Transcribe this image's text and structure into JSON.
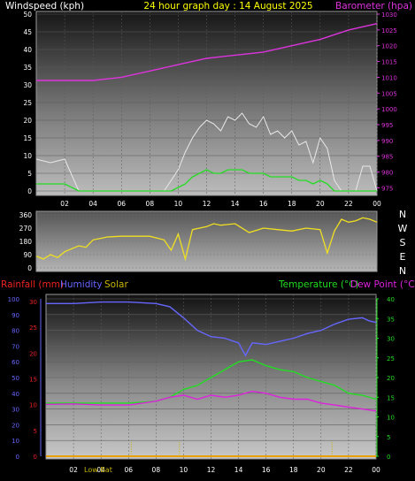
{
  "header": {
    "left": "Windspeed (kph)",
    "center": "24 hour graph day : 14 August 2025",
    "right": "Barometer (hpa)"
  },
  "dir_labels": [
    "N",
    "W",
    "S",
    "E",
    "N"
  ],
  "bottom_header": {
    "rainfall": "Rainfall (mm)",
    "humidity": "Humidity",
    "solar": "Solar",
    "temperature": "Temperature (°C)",
    "dewpoint": "Dew Point (°C)"
  },
  "lowbat_label": "Low Bat",
  "colors": {
    "wind": "#ffffff",
    "gust": "#e8e8e8",
    "avgwind": "#22dd22",
    "barometer": "#dd33dd",
    "direction": "#f0e020",
    "rainfall": "#ee2222",
    "humidity": "#6666ff",
    "solar": "#c8b400",
    "temperature": "#22dd22",
    "dewpoint": "#dd22dd",
    "title": "#ffff00",
    "text": "#ffffff"
  },
  "chart_data": [
    {
      "type": "line",
      "title": "24 hour graph day : 14 August 2025",
      "ylabel": "Windspeed (kph)",
      "y2label": "Barometer (hpa)",
      "x_ticks": [
        "02",
        "04",
        "06",
        "08",
        "10",
        "12",
        "14",
        "16",
        "18",
        "20",
        "22",
        "00"
      ],
      "ylim": [
        0,
        50
      ],
      "y_ticks": [
        "0",
        "5",
        "10",
        "15",
        "20",
        "25",
        "30",
        "35",
        "40",
        "45",
        "50"
      ],
      "y2lim": [
        974,
        1030
      ],
      "y2_ticks": [
        "975",
        "980",
        "985",
        "990",
        "995",
        "1000",
        "1005",
        "1010",
        "1015",
        "1020",
        "1025",
        "1030"
      ],
      "series": [
        {
          "name": "Wind gust",
          "x_hours": [
            0,
            1,
            2,
            3,
            4,
            5,
            6,
            7,
            8,
            9,
            9.5,
            10,
            10.5,
            11,
            11.5,
            12,
            12.5,
            13,
            13.5,
            14,
            14.5,
            15,
            15.5,
            16,
            16.5,
            17,
            17.5,
            18,
            18.5,
            19,
            19.5,
            20,
            20.5,
            21,
            21.5,
            22,
            22.5,
            23,
            23.5,
            24
          ],
          "values": [
            9,
            8,
            9,
            0,
            0,
            0,
            0,
            0,
            0,
            0,
            3,
            6,
            11,
            15,
            18,
            20,
            19,
            17,
            21,
            20,
            22,
            19,
            18,
            21,
            16,
            17,
            15,
            17,
            13,
            14,
            8,
            15,
            12,
            3,
            0,
            0,
            0,
            7,
            7,
            0
          ]
        },
        {
          "name": "Average wind",
          "x_hours": [
            0,
            1,
            2,
            3,
            4,
            5,
            6,
            7,
            8,
            9,
            9.5,
            10,
            10.5,
            11,
            11.5,
            12,
            12.5,
            13,
            13.5,
            14,
            14.5,
            15,
            15.5,
            16,
            16.5,
            17,
            17.5,
            18,
            18.5,
            19,
            19.5,
            20,
            20.5,
            21,
            21.5,
            22,
            22.5,
            23,
            23.5,
            24
          ],
          "values": [
            2,
            2,
            2,
            0,
            0,
            0,
            0,
            0,
            0,
            0,
            0,
            1,
            2,
            4,
            5,
            6,
            5,
            5,
            6,
            6,
            6,
            5,
            5,
            5,
            4,
            4,
            4,
            4,
            3,
            3,
            2,
            3,
            2,
            0,
            0,
            0,
            0,
            0,
            0,
            0
          ]
        },
        {
          "name": "Barometer",
          "x_hours": [
            0,
            2,
            4,
            6,
            8,
            10,
            12,
            14,
            16,
            18,
            20,
            22,
            24
          ],
          "values": [
            1009,
            1009,
            1009,
            1010,
            1012,
            1014,
            1016,
            1017,
            1018,
            1020,
            1022,
            1025,
            1027
          ]
        }
      ]
    },
    {
      "type": "line",
      "series_name": "Wind direction",
      "x_ticks": [],
      "ylim": [
        0,
        360
      ],
      "y_ticks": [
        "0",
        "90",
        "180",
        "270",
        "360"
      ],
      "series": [
        {
          "name": "Wind direction",
          "x_hours": [
            0,
            0.5,
            1,
            1.5,
            2,
            2.5,
            3,
            3.5,
            4,
            4.5,
            5,
            6,
            7,
            8,
            9,
            9.5,
            10,
            10.5,
            11,
            11.5,
            12,
            12.5,
            13,
            14,
            15,
            16,
            17,
            18,
            19,
            20,
            20.5,
            21,
            21.5,
            22,
            22.5,
            23,
            23.5,
            24
          ],
          "values": [
            80,
            60,
            90,
            70,
            110,
            130,
            150,
            140,
            190,
            200,
            210,
            215,
            215,
            215,
            190,
            120,
            230,
            60,
            260,
            270,
            280,
            300,
            290,
            300,
            240,
            270,
            260,
            250,
            270,
            260,
            100,
            250,
            330,
            310,
            320,
            340,
            330,
            310
          ]
        }
      ]
    },
    {
      "type": "line",
      "x_ticks": [
        "02",
        "04",
        "06",
        "08",
        "10",
        "12",
        "14",
        "16",
        "18",
        "20",
        "22",
        "00"
      ],
      "ylim_left": [
        0,
        100
      ],
      "y_ticks_left": [
        "0",
        "5",
        "10",
        "15",
        "20",
        "25",
        "30"
      ],
      "y_ticks_pct": [
        "0",
        "10",
        "20",
        "30",
        "40",
        "50",
        "60",
        "70",
        "80",
        "90",
        "100"
      ],
      "ylim_right": [
        0,
        40
      ],
      "y_ticks_right": [
        "0",
        "5",
        "10",
        "15",
        "20",
        "25",
        "30",
        "35",
        "40"
      ],
      "series": [
        {
          "name": "Humidity",
          "x_hours": [
            0,
            2,
            4,
            6,
            8,
            9,
            10,
            11,
            12,
            13,
            14,
            14.5,
            15,
            16,
            17,
            18,
            19,
            20,
            21,
            22,
            23,
            23.5,
            24
          ],
          "values": [
            97,
            97,
            98,
            98,
            97,
            95,
            88,
            80,
            76,
            75,
            72,
            64,
            72,
            71,
            73,
            75,
            78,
            80,
            84,
            87,
            88,
            86,
            85
          ]
        },
        {
          "name": "Rainfall",
          "x_hours": [
            0,
            24
          ],
          "values": [
            0,
            0
          ]
        },
        {
          "name": "Temperature",
          "x_hours": [
            0,
            2,
            4,
            6,
            8,
            9,
            10,
            11,
            12,
            13,
            14,
            15,
            16,
            17,
            18,
            19,
            20,
            21,
            22,
            23,
            24
          ],
          "values": [
            13.5,
            13.5,
            13.5,
            13.5,
            14,
            15,
            17,
            18,
            20,
            22,
            24,
            24.5,
            23,
            22,
            21.5,
            20,
            19,
            18,
            16,
            15.5,
            14.5
          ]
        },
        {
          "name": "Dew Point",
          "x_hours": [
            0,
            2,
            4,
            6,
            8,
            9,
            10,
            11,
            12,
            13,
            14,
            15,
            16,
            17,
            18,
            19,
            20,
            21,
            22,
            23,
            24
          ],
          "values": [
            13.2,
            13.3,
            13,
            13,
            14,
            15,
            15.5,
            14.5,
            15.5,
            15,
            15.5,
            16.5,
            16,
            15,
            14.5,
            14.5,
            13.5,
            13,
            12.5,
            12,
            11.5
          ]
        }
      ]
    }
  ]
}
